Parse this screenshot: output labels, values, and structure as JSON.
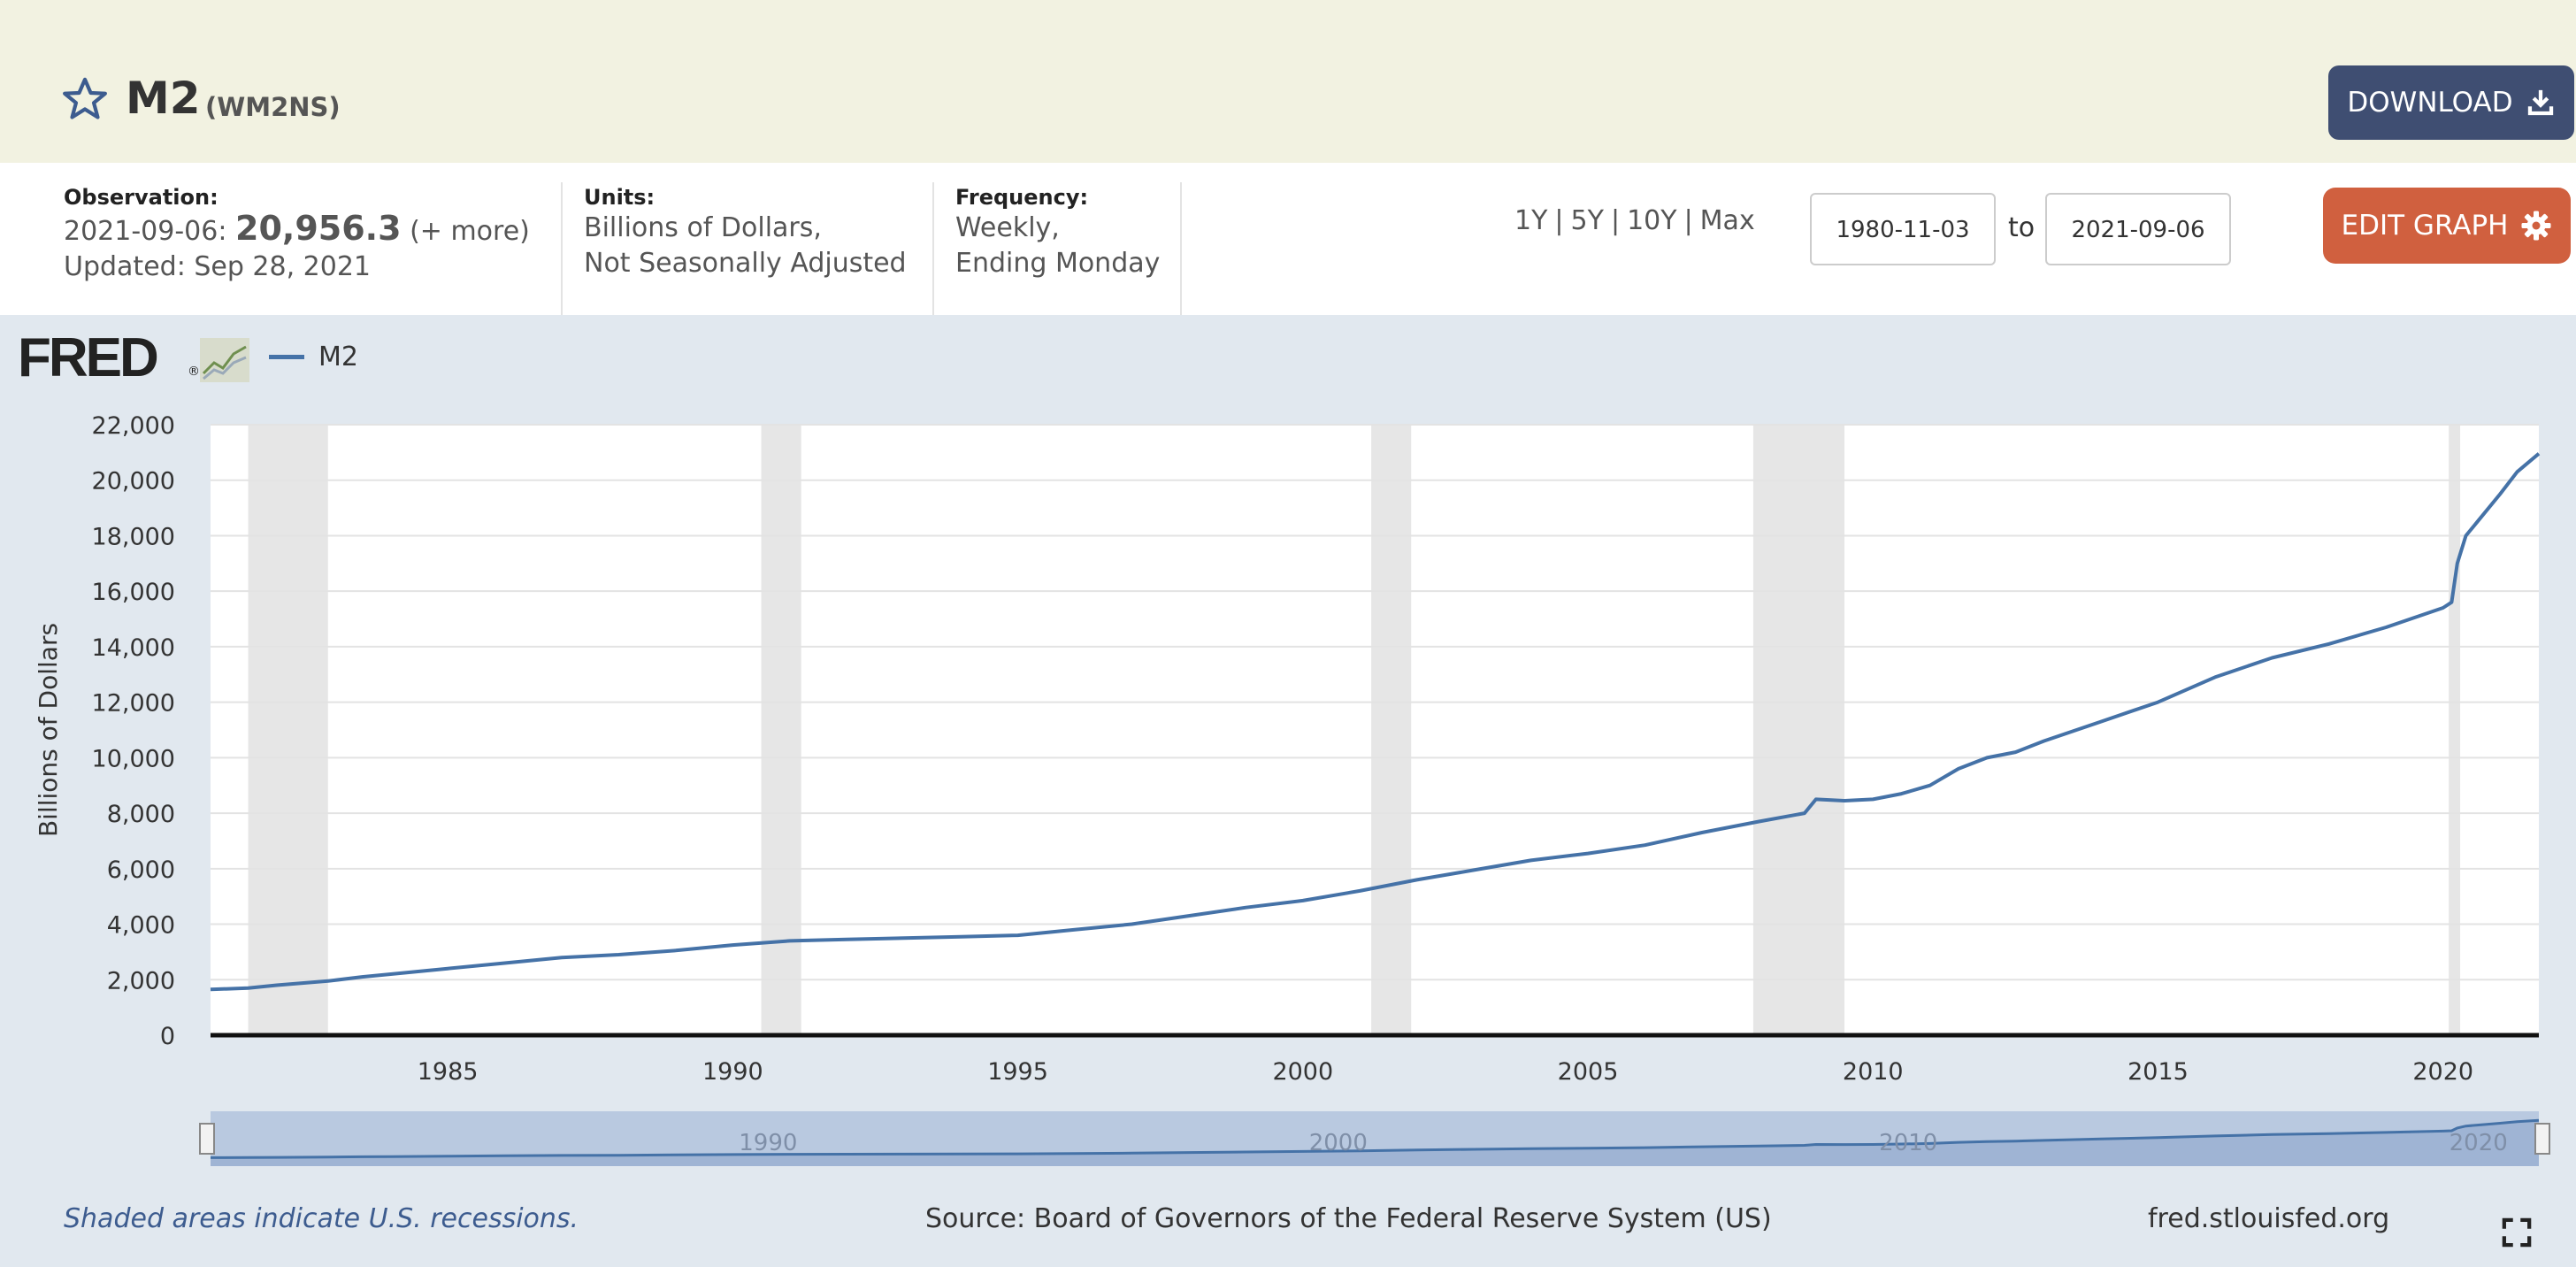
{
  "header": {
    "title": "M2",
    "series_code": "(WM2NS)",
    "download_label": "DOWNLOAD",
    "star_icon": "star-outline-icon",
    "download_icon": "download-icon"
  },
  "meta": {
    "observation_label": "Observation:",
    "observation_date": "2021-09-06:",
    "observation_value": "20,956.3",
    "observation_more": "(+ more)",
    "updated": "Updated: Sep 28, 2021",
    "units_label": "Units:",
    "units_line1": "Billions of Dollars,",
    "units_line2": "Not Seasonally Adjusted",
    "frequency_label": "Frequency:",
    "frequency_line1": "Weekly,",
    "frequency_line2": "Ending Monday"
  },
  "controls": {
    "range_1y": "1Y",
    "range_5y": "5Y",
    "range_10y": "10Y",
    "range_max": "Max",
    "pipe": "|",
    "start_date": "1980-11-03",
    "to_label": "to",
    "end_date": "2021-09-06",
    "edit_label": "EDIT GRAPH",
    "edit_icon": "gear-icon"
  },
  "brand": {
    "logo": "FRED",
    "reg": "®"
  },
  "legend": {
    "series_name": "M2"
  },
  "chart_data": {
    "type": "line",
    "ylabel": "Billions of Dollars",
    "ylim": [
      0,
      22000
    ],
    "xlim": [
      1980.84,
      2021.68
    ],
    "yticks": [
      0,
      2000,
      4000,
      6000,
      8000,
      10000,
      12000,
      14000,
      16000,
      18000,
      20000,
      22000
    ],
    "ytick_labels": [
      "0",
      "2,000",
      "4,000",
      "6,000",
      "8,000",
      "10,000",
      "12,000",
      "14,000",
      "16,000",
      "18,000",
      "20,000",
      "22,000"
    ],
    "xticks": [
      1985,
      1990,
      1995,
      2000,
      2005,
      2010,
      2015,
      2020
    ],
    "xtick_labels": [
      "1985",
      "1990",
      "1995",
      "2000",
      "2005",
      "2010",
      "2015",
      "2020"
    ],
    "navigator_labels": [
      "1990",
      "2000",
      "2010",
      "2020"
    ],
    "grid": true,
    "legend_position": "top-left",
    "recessions": [
      [
        1981.5,
        1982.9
      ],
      [
        1990.5,
        1991.2
      ],
      [
        2001.2,
        2001.9
      ],
      [
        2007.9,
        2009.5
      ],
      [
        2020.1,
        2020.3
      ]
    ],
    "series": [
      {
        "name": "M2",
        "color": "#4572a7",
        "x": [
          1980.84,
          1981.5,
          1982.0,
          1982.9,
          1983.5,
          1984.0,
          1985.0,
          1986.0,
          1987.0,
          1988.0,
          1989.0,
          1990.0,
          1991.0,
          1992.0,
          1993.0,
          1994.0,
          1995.0,
          1996.0,
          1997.0,
          1998.0,
          1999.0,
          2000.0,
          2001.0,
          2002.0,
          2003.0,
          2004.0,
          2005.0,
          2006.0,
          2007.0,
          2008.0,
          2008.8,
          2009.0,
          2009.5,
          2010.0,
          2010.5,
          2011.0,
          2011.5,
          2012.0,
          2012.5,
          2013.0,
          2014.0,
          2015.0,
          2016.0,
          2017.0,
          2018.0,
          2019.0,
          2020.0,
          2020.15,
          2020.25,
          2020.4,
          2020.6,
          2021.0,
          2021.3,
          2021.68
        ],
        "values": [
          1650,
          1700,
          1800,
          1950,
          2100,
          2200,
          2400,
          2600,
          2800,
          2900,
          3050,
          3250,
          3400,
          3450,
          3500,
          3550,
          3600,
          3800,
          4000,
          4300,
          4600,
          4850,
          5200,
          5600,
          5950,
          6300,
          6550,
          6850,
          7300,
          7700,
          8000,
          8500,
          8450,
          8500,
          8700,
          9000,
          9600,
          10000,
          10200,
          10600,
          11300,
          12000,
          12900,
          13600,
          14100,
          14700,
          15400,
          15600,
          17000,
          18000,
          18500,
          19500,
          20300,
          20956.3
        ]
      }
    ]
  },
  "footer": {
    "note": "Shaded areas indicate U.S. recessions.",
    "source": "Source: Board of Governors of the Federal Reserve System (US)",
    "site": "fred.stlouisfed.org",
    "fullscreen_icon": "fullscreen-icon"
  }
}
